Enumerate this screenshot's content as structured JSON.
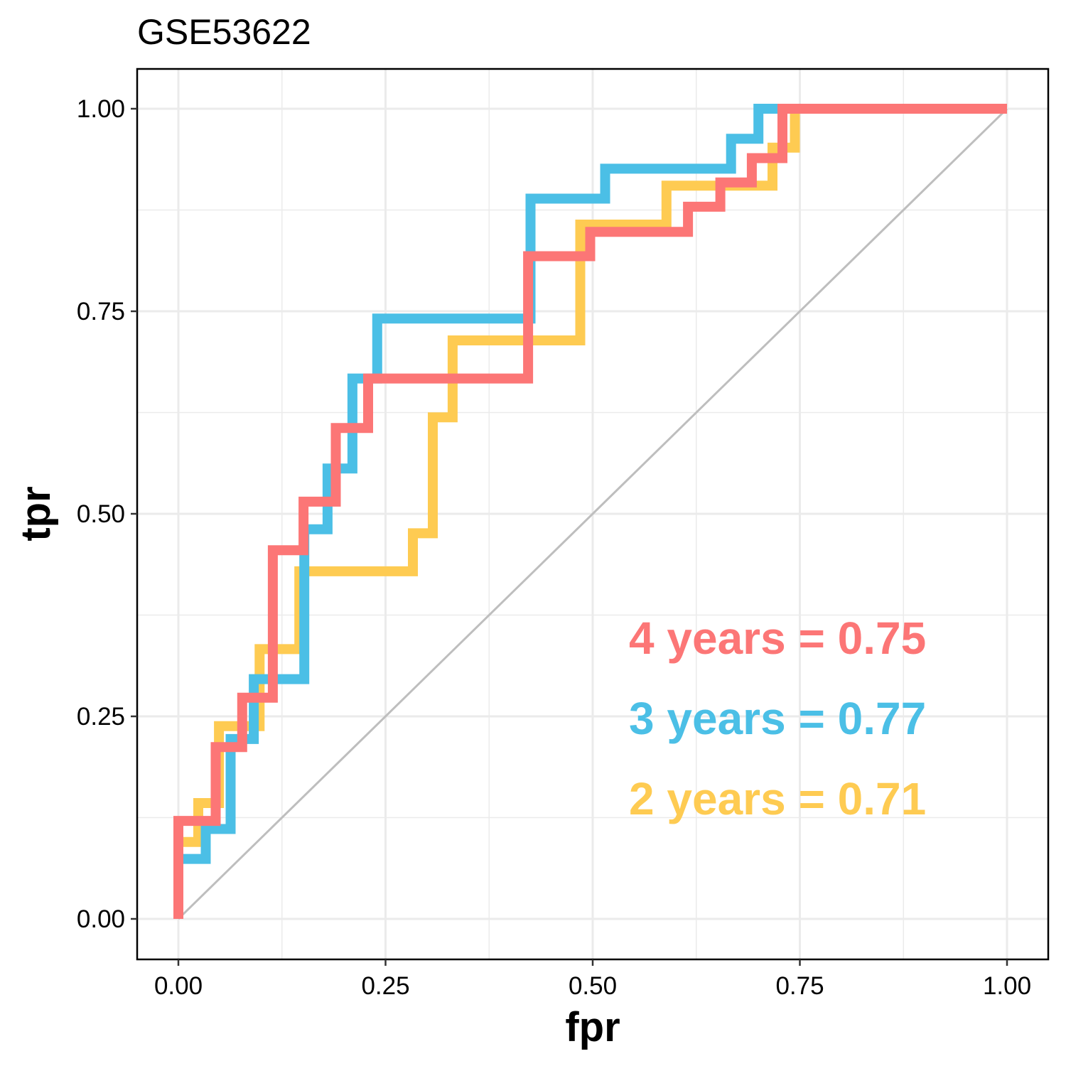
{
  "chart_data": {
    "type": "line",
    "title": "GSE53622",
    "xlabel": "fpr",
    "ylabel": "tpr",
    "xlim": [
      -0.1,
      1.1
    ],
    "ylim": [
      -0.05,
      1.05
    ],
    "x_ticks": [
      "0.00",
      "0.25",
      "0.50",
      "0.75",
      "1.00"
    ],
    "y_ticks": [
      "0.00",
      "0.25",
      "0.50",
      "0.75",
      "1.00"
    ],
    "grid": true,
    "reference_line": {
      "from": [
        0,
        0
      ],
      "to": [
        1,
        1
      ],
      "color": "#bebebe"
    },
    "series": [
      {
        "color": "#fecb52",
        "points": [
          [
            0,
            0
          ],
          [
            0,
            0.095
          ],
          [
            0.024,
            0.095
          ],
          [
            0.024,
            0.143
          ],
          [
            0.049,
            0.143
          ],
          [
            0.049,
            0.238
          ],
          [
            0.098,
            0.238
          ],
          [
            0.098,
            0.333
          ],
          [
            0.146,
            0.333
          ],
          [
            0.146,
            0.429
          ],
          [
            0.283,
            0.429
          ],
          [
            0.283,
            0.476
          ],
          [
            0.307,
            0.476
          ],
          [
            0.307,
            0.619
          ],
          [
            0.331,
            0.619
          ],
          [
            0.331,
            0.714
          ],
          [
            0.485,
            0.714
          ],
          [
            0.485,
            0.857
          ],
          [
            0.589,
            0.857
          ],
          [
            0.589,
            0.905
          ],
          [
            0.717,
            0.905
          ],
          [
            0.717,
            0.952
          ],
          [
            0.744,
            0.952
          ],
          [
            0.744,
            1
          ],
          [
            1,
            1
          ]
        ]
      },
      {
        "color": "#4bbfe6",
        "points": [
          [
            0,
            0
          ],
          [
            0,
            0.074
          ],
          [
            0.033,
            0.074
          ],
          [
            0.033,
            0.111
          ],
          [
            0.063,
            0.111
          ],
          [
            0.063,
            0.222
          ],
          [
            0.091,
            0.222
          ],
          [
            0.091,
            0.296
          ],
          [
            0.152,
            0.296
          ],
          [
            0.152,
            0.481
          ],
          [
            0.18,
            0.481
          ],
          [
            0.18,
            0.556
          ],
          [
            0.21,
            0.556
          ],
          [
            0.21,
            0.667
          ],
          [
            0.24,
            0.667
          ],
          [
            0.24,
            0.741
          ],
          [
            0.425,
            0.741
          ],
          [
            0.425,
            0.889
          ],
          [
            0.515,
            0.889
          ],
          [
            0.515,
            0.926
          ],
          [
            0.667,
            0.926
          ],
          [
            0.667,
            0.963
          ],
          [
            0.7,
            0.963
          ],
          [
            0.7,
            1
          ],
          [
            1,
            1
          ]
        ]
      },
      {
        "color": "#fc7676",
        "points": [
          [
            0,
            0
          ],
          [
            0,
            0.121
          ],
          [
            0.045,
            0.121
          ],
          [
            0.045,
            0.212
          ],
          [
            0.077,
            0.212
          ],
          [
            0.077,
            0.273
          ],
          [
            0.114,
            0.273
          ],
          [
            0.114,
            0.455
          ],
          [
            0.151,
            0.455
          ],
          [
            0.151,
            0.515
          ],
          [
            0.19,
            0.515
          ],
          [
            0.19,
            0.606
          ],
          [
            0.229,
            0.606
          ],
          [
            0.229,
            0.667
          ],
          [
            0.422,
            0.667
          ],
          [
            0.422,
            0.818
          ],
          [
            0.497,
            0.818
          ],
          [
            0.497,
            0.848
          ],
          [
            0.615,
            0.848
          ],
          [
            0.615,
            0.879
          ],
          [
            0.654,
            0.879
          ],
          [
            0.654,
            0.909
          ],
          [
            0.692,
            0.909
          ],
          [
            0.692,
            0.939
          ],
          [
            0.729,
            0.939
          ],
          [
            0.729,
            1
          ],
          [
            1,
            1
          ]
        ]
      }
    ],
    "annotations": [
      {
        "text": "4 years =  0.75",
        "color": "#fc7676"
      },
      {
        "text": "3 years =  0.77",
        "color": "#4bbfe6"
      },
      {
        "text": "2 years =  0.71",
        "color": "#fecb52"
      }
    ]
  }
}
